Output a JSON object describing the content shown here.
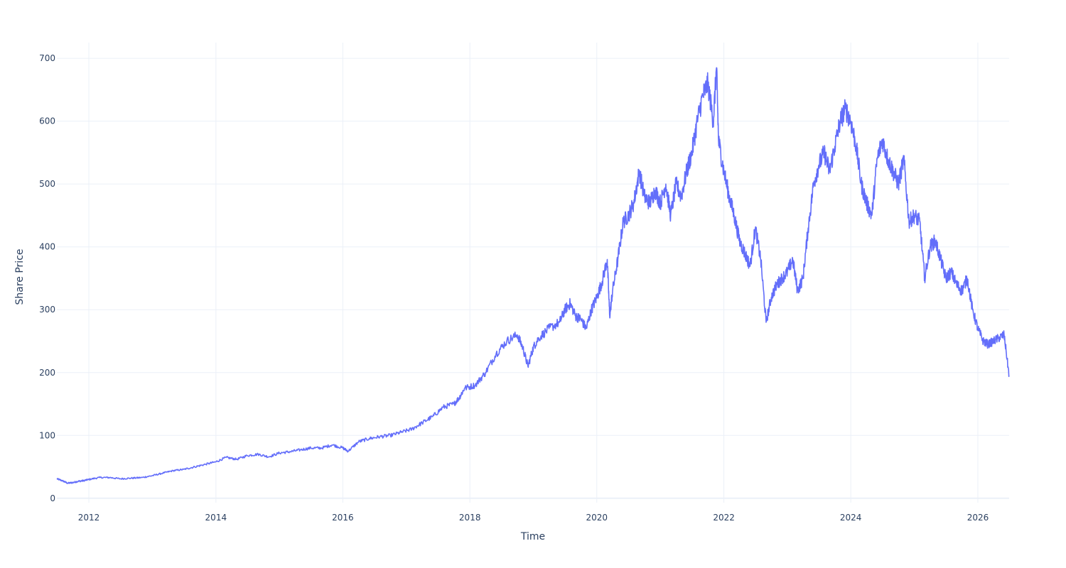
{
  "chart_data": {
    "type": "line",
    "xlabel": "Time",
    "ylabel": "Share Price",
    "x_tick_labels": [
      "2012",
      "2014",
      "2016",
      "2018",
      "2020",
      "2022",
      "2024",
      "2026"
    ],
    "y_tick_labels": [
      "0",
      "100",
      "200",
      "300",
      "400",
      "500",
      "600",
      "700"
    ],
    "xlim": [
      "2011-07-01",
      "2026-06-30"
    ],
    "ylim": [
      -7,
      725
    ],
    "grid": true,
    "legend": "none",
    "colors": {
      "line": "#636efa",
      "grid": "#ebf0f8",
      "text": "#2a3f5f",
      "zeroline": "#ebf0f8"
    },
    "series": [
      {
        "x": [
          "2011-07-01",
          "2011-08-01",
          "2011-09-01",
          "2011-10-01",
          "2011-11-01",
          "2011-12-01",
          "2012-01-01",
          "2012-03-01",
          "2012-05-01",
          "2012-07-01",
          "2012-09-01",
          "2012-11-01",
          "2013-01-01",
          "2013-03-01",
          "2013-05-01",
          "2013-07-01",
          "2013-09-01",
          "2013-11-01",
          "2014-01-01",
          "2014-03-01",
          "2014-05-01",
          "2014-07-01",
          "2014-09-01",
          "2014-11-01",
          "2015-01-01",
          "2015-03-01",
          "2015-05-01",
          "2015-07-01",
          "2015-09-01",
          "2015-11-01",
          "2016-01-01",
          "2016-02-01",
          "2016-04-01",
          "2016-06-01",
          "2016-08-01",
          "2016-10-01",
          "2016-12-01",
          "2017-02-01",
          "2017-04-01",
          "2017-06-01",
          "2017-08-01",
          "2017-10-01",
          "2017-11-01",
          "2017-12-01",
          "2018-02-01",
          "2018-04-01",
          "2018-06-01",
          "2018-08-01",
          "2018-10-01",
          "2018-11-01",
          "2018-12-01",
          "2019-01-01",
          "2019-02-01",
          "2019-04-01",
          "2019-06-01",
          "2019-07-01",
          "2019-08-01",
          "2019-09-01",
          "2019-10-01",
          "2019-11-01",
          "2019-12-01",
          "2020-01-01",
          "2020-02-01",
          "2020-03-01",
          "2020-03-15",
          "2020-04-01",
          "2020-05-01",
          "2020-06-01",
          "2020-07-01",
          "2020-08-01",
          "2020-09-01",
          "2020-10-01",
          "2020-11-01",
          "2020-12-01",
          "2021-01-01",
          "2021-02-01",
          "2021-03-01",
          "2021-04-01",
          "2021-05-01",
          "2021-06-01",
          "2021-07-01",
          "2021-08-01",
          "2021-09-01",
          "2021-10-01",
          "2021-11-01",
          "2021-11-20",
          "2021-12-01",
          "2022-01-01",
          "2022-02-01",
          "2022-03-01",
          "2022-04-01",
          "2022-05-01",
          "2022-06-01",
          "2022-07-01",
          "2022-08-01",
          "2022-09-01",
          "2022-10-01",
          "2022-11-01",
          "2022-12-01",
          "2023-01-01",
          "2023-02-01",
          "2023-03-01",
          "2023-04-01",
          "2023-05-01",
          "2023-06-01",
          "2023-07-01",
          "2023-08-01",
          "2023-09-01",
          "2023-10-01",
          "2023-11-01",
          "2023-12-01",
          "2024-01-01",
          "2024-02-01",
          "2024-03-01",
          "2024-04-01",
          "2024-05-01",
          "2024-06-01",
          "2024-07-01",
          "2024-08-01",
          "2024-09-01",
          "2024-10-01",
          "2024-11-01",
          "2024-12-01",
          "2025-01-01",
          "2025-02-01",
          "2025-03-01",
          "2025-04-01",
          "2025-05-01",
          "2025-06-01",
          "2025-07-01",
          "2025-08-01",
          "2025-09-01",
          "2025-10-01",
          "2025-11-01",
          "2025-12-01",
          "2026-01-01",
          "2026-02-01",
          "2026-03-01",
          "2026-04-01",
          "2026-05-01",
          "2026-06-01",
          "2026-06-30"
        ],
        "y": [
          31,
          28,
          24,
          25,
          27,
          28,
          30,
          33,
          33,
          31,
          32,
          33,
          36,
          40,
          44,
          46,
          50,
          54,
          58,
          65,
          62,
          68,
          70,
          66,
          72,
          74,
          77,
          80,
          80,
          85,
          80,
          75,
          90,
          95,
          98,
          100,
          105,
          110,
          120,
          130,
          145,
          150,
          160,
          175,
          180,
          200,
          230,
          250,
          260,
          240,
          210,
          240,
          255,
          270,
          280,
          300,
          310,
          290,
          285,
          270,
          300,
          320,
          345,
          380,
          290,
          330,
          380,
          440,
          450,
          470,
          520,
          480,
          470,
          490,
          470,
          500,
          450,
          500,
          480,
          520,
          550,
          600,
          640,
          660,
          600,
          685,
          570,
          520,
          480,
          450,
          410,
          390,
          370,
          430,
          380,
          280,
          320,
          340,
          350,
          360,
          380,
          330,
          350,
          430,
          500,
          530,
          550,
          520,
          560,
          600,
          620,
          600,
          560,
          500,
          470,
          450,
          540,
          570,
          540,
          520,
          500,
          540,
          440,
          450,
          440,
          350,
          400,
          410,
          380,
          350,
          360,
          340,
          330,
          350,
          300,
          270,
          250,
          245,
          250,
          255,
          260,
          195
        ]
      }
    ]
  }
}
